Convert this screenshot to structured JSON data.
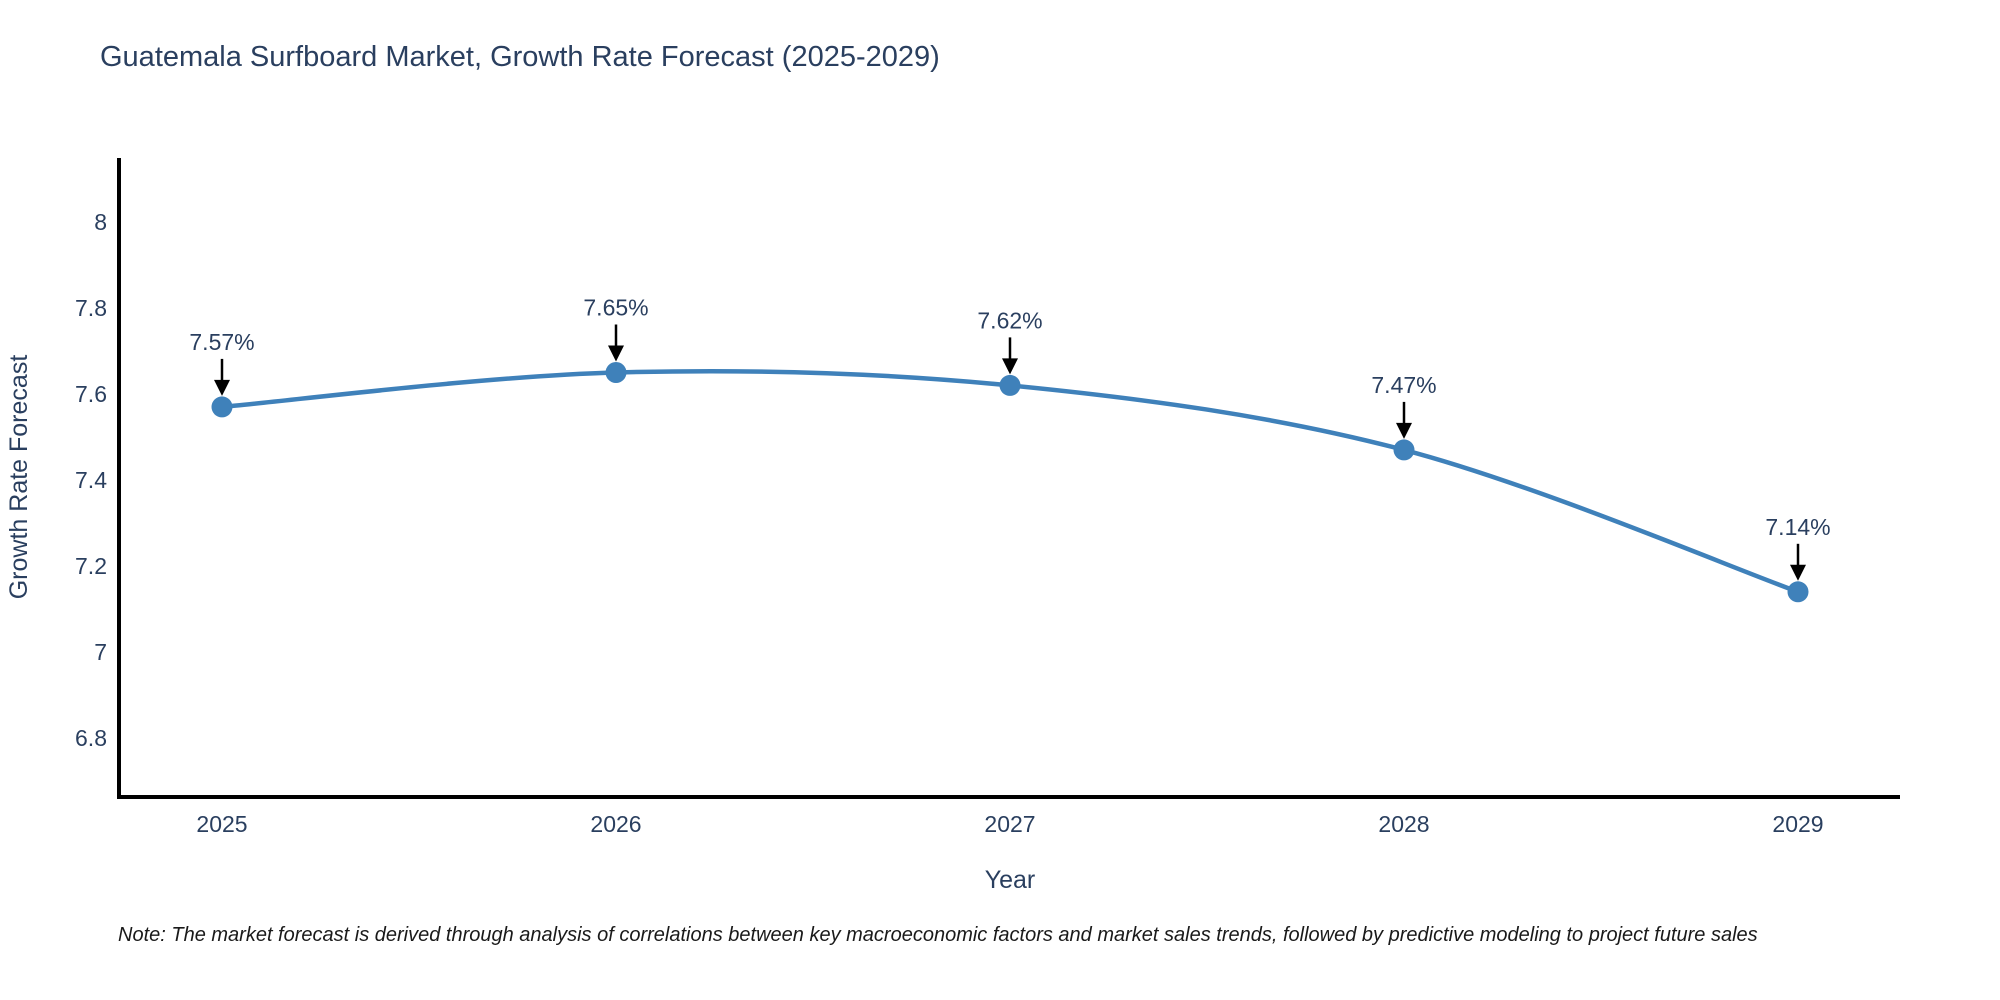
{
  "chart_data": {
    "type": "line",
    "title": "Guatemala Surfboard Market, Growth Rate Forecast (2025-2029)",
    "xlabel": "Year",
    "ylabel": "Growth Rate Forecast",
    "x": [
      2025,
      2026,
      2027,
      2028,
      2029
    ],
    "series": [
      {
        "name": "Growth Rate Forecast",
        "values": [
          7.57,
          7.65,
          7.62,
          7.47,
          7.14
        ],
        "point_labels": [
          "7.57%",
          "7.65%",
          "7.62%",
          "7.47%",
          "7.14%"
        ]
      }
    ],
    "xticks": [
      "2025",
      "2026",
      "2027",
      "2028",
      "2029"
    ],
    "yticks": [
      "8",
      "7.8",
      "7.6",
      "7.4",
      "7.2",
      "7",
      "6.8"
    ],
    "ytick_values": [
      8,
      7.8,
      7.6,
      7.4,
      7.2,
      7.0,
      6.8
    ],
    "ylim": [
      6.67,
      8.14
    ],
    "grid": false,
    "legend": false,
    "line_shape": "spline",
    "colors": {
      "line": "#3f81ba",
      "marker": "#3f81ba",
      "axis": "#000000",
      "text": "#2a3f5f",
      "arrow": "#000000"
    },
    "note": "Note: The market forecast is derived through analysis of correlations between key macroeconomic factors and market sales trends, followed by predictive modeling to project future sales"
  }
}
